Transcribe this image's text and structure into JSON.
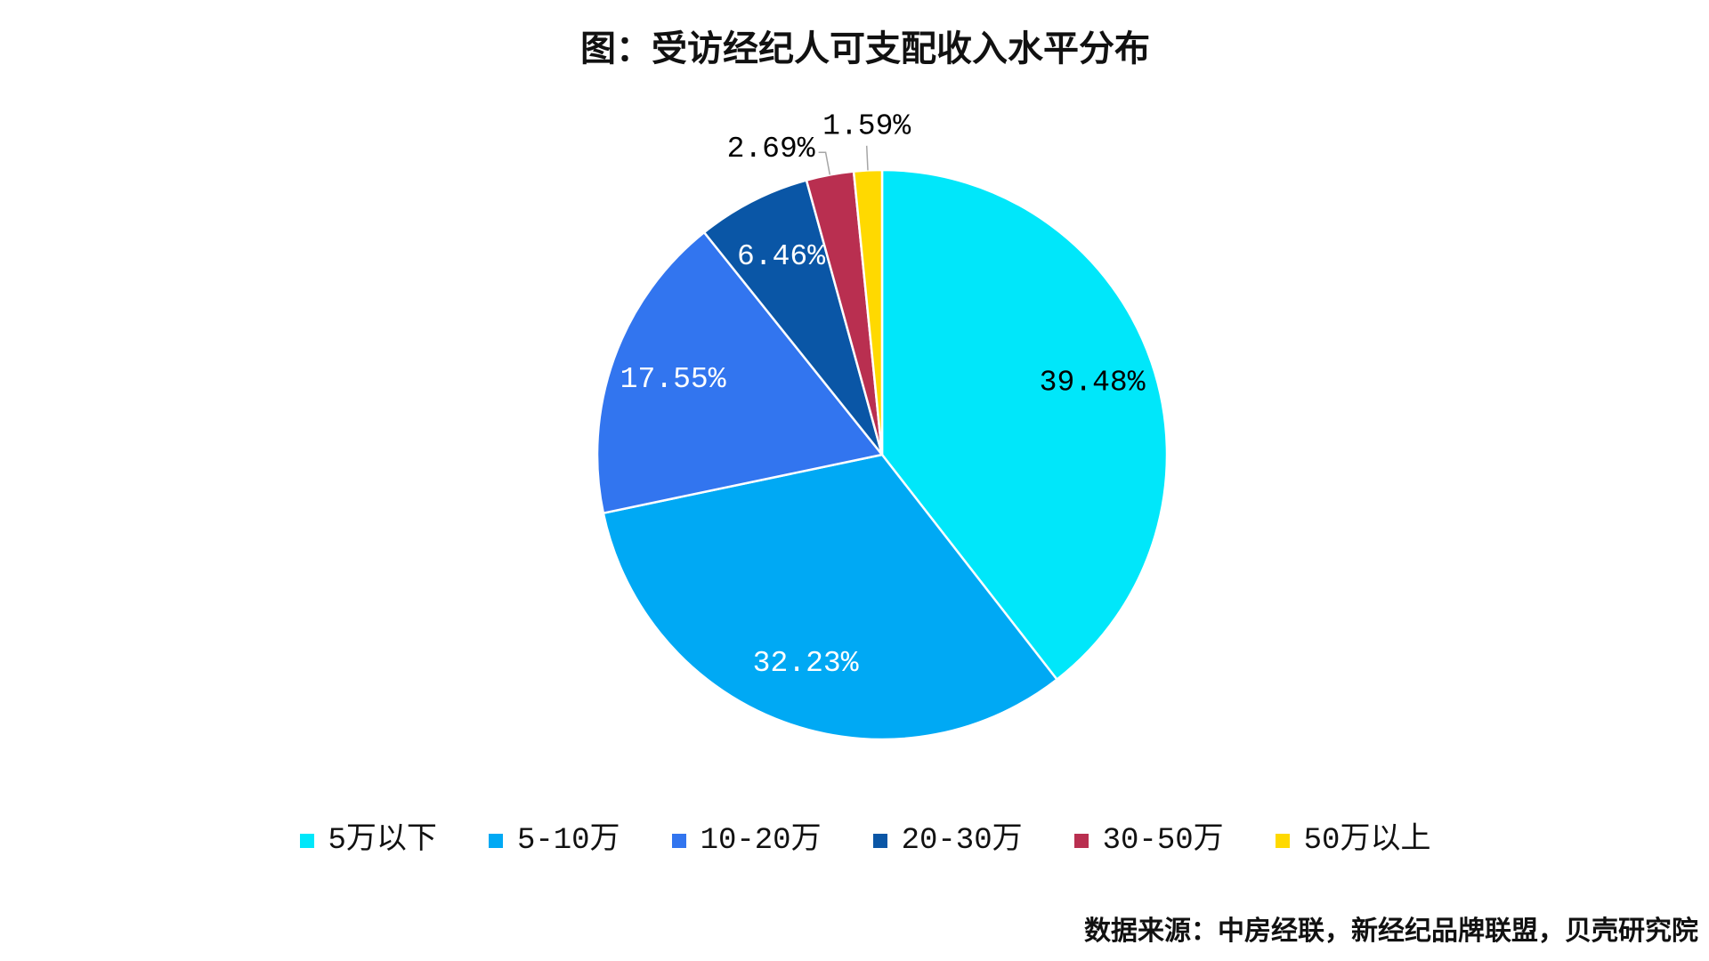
{
  "source": "数据来源：中房经联，新经纪品牌联盟，贝壳研究院",
  "chart_data": {
    "type": "pie",
    "title": "图：受访经纪人可支配收入水平分布",
    "categories": [
      "5万以下",
      "5-10万",
      "10-20万",
      "20-30万",
      "30-50万",
      "50万以上"
    ],
    "values": [
      39.48,
      32.23,
      17.55,
      6.46,
      2.69,
      1.59
    ],
    "value_labels": [
      "39.48%",
      "32.23%",
      "17.55%",
      "6.46%",
      "2.69%",
      "1.59%"
    ],
    "colors": [
      "#00E7FA",
      "#00A9F4",
      "#3275EF",
      "#0A56A6",
      "#B92F50",
      "#FFD900"
    ],
    "label_colors": [
      "#000000",
      "#ffffff",
      "#ffffff",
      "#ffffff",
      "#000000",
      "#000000"
    ],
    "legend": "bottom"
  }
}
